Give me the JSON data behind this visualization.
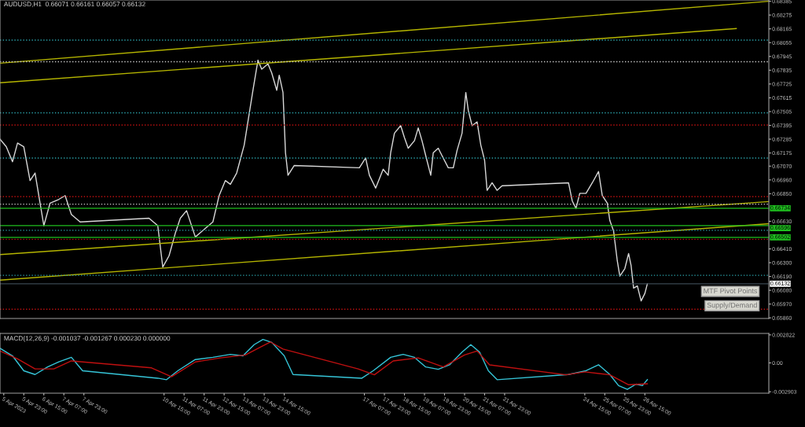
{
  "chart_data": [
    {
      "type": "line",
      "title": "AUDUSD,H1  0.66071 0.66161 0.66057 0.66132",
      "tick_labels": "y",
      "grid": false,
      "legend": false,
      "xlim": [
        "2023-04-05T04:00",
        "2023-04-30T18:00"
      ],
      "ylim": [
        0.65855,
        0.68395
      ],
      "yticks": [
        {
          "value": 0.68385,
          "label": "0.68385"
        },
        {
          "value": 0.68275,
          "label": "0.68275"
        },
        {
          "value": 0.68165,
          "label": "0.68165"
        },
        {
          "value": 0.68055,
          "label": "0.68055"
        },
        {
          "value": 0.67945,
          "label": "0.67945"
        },
        {
          "value": 0.67835,
          "label": "0.67835"
        },
        {
          "value": 0.67725,
          "label": "0.67725"
        },
        {
          "value": 0.67615,
          "label": "0.67615"
        },
        {
          "value": 0.67505,
          "label": "0.67505"
        },
        {
          "value": 0.67395,
          "label": "0.67395"
        },
        {
          "value": 0.67285,
          "label": "0.67285"
        },
        {
          "value": 0.67175,
          "label": "0.67175"
        },
        {
          "value": 0.6707,
          "label": "0.67070"
        },
        {
          "value": 0.6696,
          "label": "0.66960"
        },
        {
          "value": 0.6685,
          "label": "0.66850"
        },
        {
          "value": 0.6663,
          "label": "0.66630"
        },
        {
          "value": 0.6641,
          "label": "0.66410"
        },
        {
          "value": 0.663,
          "label": "0.66300"
        },
        {
          "value": 0.6619,
          "label": "0.66190"
        },
        {
          "value": 0.6608,
          "label": "0.66080"
        },
        {
          "value": 0.6597,
          "label": "0.65970"
        },
        {
          "value": 0.6586,
          "label": "0.65860"
        }
      ],
      "series": [
        {
          "type": "line",
          "color": "#d8d8d8",
          "x": [
            "2023-04-05T04:00",
            "2023-04-05T09:00",
            "2023-04-05T14:00",
            "2023-04-05T18:00",
            "2023-04-05T23:00",
            "2023-04-06T04:00",
            "2023-04-06T08:00",
            "2023-04-06T13:00",
            "2023-04-06T15:00",
            "2023-04-06T20:00",
            "2023-04-07T03:00",
            "2023-04-07T08:00",
            "2023-04-07T13:00",
            "2023-04-07T20:00",
            "2023-04-10T03:00",
            "2023-04-10T10:00",
            "2023-04-10T14:00",
            "2023-04-10T19:00",
            "2023-04-11T00:00",
            "2023-04-11T04:00",
            "2023-04-11T09:00",
            "2023-04-11T16:00",
            "2023-04-11T23:00",
            "2023-04-12T06:00",
            "2023-04-12T11:00",
            "2023-04-12T16:00",
            "2023-04-12T20:00",
            "2023-04-13T01:00",
            "2023-04-13T07:00",
            "2023-04-13T14:00",
            "2023-04-13T18:00",
            "2023-04-13T21:00",
            "2023-04-14T02:00",
            "2023-04-14T05:00",
            "2023-04-14T09:00",
            "2023-04-14T11:00",
            "2023-04-14T14:00",
            "2023-04-14T16:00",
            "2023-04-14T18:00",
            "2023-04-14T23:00",
            "2023-04-17T03:00",
            "2023-04-17T08:00",
            "2023-04-17T11:00",
            "2023-04-17T16:00",
            "2023-04-17T22:00",
            "2023-04-18T02:00",
            "2023-04-18T04:00",
            "2023-04-18T07:00",
            "2023-04-18T12:00",
            "2023-04-18T15:00",
            "2023-04-18T18:00",
            "2023-04-18T23:00",
            "2023-04-19T02:00",
            "2023-04-19T05:00",
            "2023-04-19T08:00",
            "2023-04-19T12:00",
            "2023-04-19T14:00",
            "2023-04-19T18:00",
            "2023-04-19T21:00",
            "2023-04-20T02:00",
            "2023-04-20T06:00",
            "2023-04-20T09:00",
            "2023-04-20T13:00",
            "2023-04-20T16:00",
            "2023-04-20T18:00",
            "2023-04-20T21:00",
            "2023-04-21T01:00",
            "2023-04-21T04:00",
            "2023-04-21T07:00",
            "2023-04-21T09:00",
            "2023-04-21T13:00",
            "2023-04-21T17:00",
            "2023-04-21T21:00",
            "2023-04-24T02:00",
            "2023-04-24T05:00",
            "2023-04-24T08:00",
            "2023-04-24T11:00",
            "2023-04-24T16:00",
            "2023-04-24T21:00",
            "2023-04-25T02:00",
            "2023-04-25T05:00",
            "2023-04-25T09:00",
            "2023-04-25T11:00",
            "2023-04-25T14:00",
            "2023-04-25T17:00",
            "2023-04-25T19:00",
            "2023-04-25T23:00",
            "2023-04-26T02:00",
            "2023-04-26T04:00",
            "2023-04-26T06:00",
            "2023-04-26T09:00",
            "2023-04-26T12:00",
            "2023-04-26T15:00",
            "2023-04-26T17:00"
          ],
          "values": [
            0.67285,
            0.67225,
            0.67105,
            0.67254,
            0.67225,
            0.66955,
            0.67015,
            0.66715,
            0.66595,
            0.66775,
            0.66805,
            0.66835,
            0.66685,
            0.66625,
            0.66655,
            0.66595,
            0.66265,
            0.66355,
            0.66535,
            0.66655,
            0.66715,
            0.66505,
            0.66565,
            0.66625,
            0.66835,
            0.66955,
            0.66925,
            0.67015,
            0.67237,
            0.67675,
            0.67915,
            0.67843,
            0.67885,
            0.67813,
            0.67675,
            0.67795,
            0.67657,
            0.67177,
            0.66997,
            0.67075,
            0.67057,
            0.67135,
            0.66997,
            0.66895,
            0.67045,
            0.66997,
            0.67177,
            0.67333,
            0.67393,
            0.67297,
            0.67213,
            0.67273,
            0.67375,
            0.67273,
            0.67153,
            0.66997,
            0.67177,
            0.67213,
            0.67153,
            0.67057,
            0.67057,
            0.67195,
            0.67333,
            0.67657,
            0.67513,
            0.67393,
            0.67423,
            0.67237,
            0.67117,
            0.66877,
            0.66937,
            0.66877,
            0.66913,
            0.66937,
            0.66793,
            0.66733,
            0.66853,
            0.66853,
            0.66937,
            0.67027,
            0.66835,
            0.66775,
            0.66637,
            0.66553,
            0.66313,
            0.66193,
            0.66253,
            0.66373,
            0.66277,
            0.66097,
            0.66115,
            0.65995,
            0.66055,
            0.66132
          ]
        },
        {
          "type": "line",
          "color": "#b5b500",
          "x": [
            "2023-04-05T04:00",
            "2023-04-30T18:00"
          ],
          "values": [
            0.67891,
            0.68385
          ]
        },
        {
          "type": "line",
          "color": "#b5b500",
          "x": [
            "2023-04-05T04:00",
            "2023-04-29T16:00"
          ],
          "values": [
            0.67735,
            0.68167
          ]
        },
        {
          "type": "line",
          "color": "#b5b500",
          "x": [
            "2023-04-05T04:00",
            "2023-04-30T18:00"
          ],
          "values": [
            0.66365,
            0.66787
          ]
        },
        {
          "type": "line",
          "color": "#b5b500",
          "x": [
            "2023-04-05T04:00",
            "2023-04-30T18:00"
          ],
          "values": [
            0.66161,
            0.66611
          ]
        }
      ],
      "ref_lines": [
        {
          "axis": "y",
          "value": 0.66734,
          "label": "0.66734",
          "color": "#1fbf1f",
          "line_style": "solid"
        },
        {
          "axis": "y",
          "value": 0.66596,
          "label": "0.66596",
          "color": "#1fbf1f",
          "line_style": "solid"
        },
        {
          "axis": "y",
          "value": 0.66502,
          "label": "0.66502",
          "color": "#1fbf1f",
          "line_style": "solid"
        },
        {
          "axis": "y",
          "value": 0.66132,
          "label": "0.66132",
          "color": "#3a4650",
          "line_style": "solid"
        },
        {
          "axis": "y",
          "value": 0.68075,
          "color": "#2aa0a8",
          "line_style": "dotted"
        },
        {
          "axis": "y",
          "value": 0.67903,
          "color": "#c8c8c8",
          "line_style": "dotted"
        },
        {
          "axis": "y",
          "value": 0.67495,
          "color": "#2aa0a8",
          "line_style": "dotted"
        },
        {
          "axis": "y",
          "value": 0.67398,
          "color": "#c01010",
          "line_style": "dotted"
        },
        {
          "axis": "y",
          "value": 0.67134,
          "color": "#2aa0a8",
          "line_style": "dotted"
        },
        {
          "axis": "y",
          "value": 0.66827,
          "color": "#c01010",
          "line_style": "dotted"
        },
        {
          "axis": "y",
          "value": 0.66767,
          "color": "#c8c8c8",
          "line_style": "dotted"
        },
        {
          "axis": "y",
          "value": 0.66558,
          "color": "#2aa0a8",
          "line_style": "dotted"
        },
        {
          "axis": "y",
          "value": 0.66486,
          "color": "#c01010",
          "line_style": "dotted"
        },
        {
          "axis": "y",
          "value": 0.66199,
          "color": "#2aa0a8",
          "line_style": "dotted"
        },
        {
          "axis": "y",
          "value": 0.65929,
          "color": "#c01010",
          "line_style": "dotted"
        }
      ],
      "annotations": [
        "MTF Pivot Points",
        "Supply/Demand"
      ]
    },
    {
      "type": "line",
      "title": "MACD(12,26,9) -0.001037 -0.001267 0.000230 0.000000",
      "grid": false,
      "legend": false,
      "xlim": [
        "2023-04-05T04:00",
        "2023-04-30T18:00"
      ],
      "xticks": [
        {
          "value": "2023-04-05T07:00",
          "label": "5 Apr 2023"
        },
        {
          "value": "2023-04-05T23:00",
          "label": "5 Apr 23:00"
        },
        {
          "value": "2023-04-06T15:00",
          "label": "6 Apr 15:00"
        },
        {
          "value": "2023-04-07T07:00",
          "label": "7 Apr 07:00"
        },
        {
          "value": "2023-04-07T23:00",
          "label": "7 Apr 23:00"
        },
        {
          "value": "2023-04-10T15:00",
          "label": "10 Apr 15:00"
        },
        {
          "value": "2023-04-11T07:00",
          "label": "11 Apr 07:00"
        },
        {
          "value": "2023-04-11T23:00",
          "label": "11 Apr 23:00"
        },
        {
          "value": "2023-04-12T15:00",
          "label": "12 Apr 15:00"
        },
        {
          "value": "2023-04-13T07:00",
          "label": "13 Apr 07:00"
        },
        {
          "value": "2023-04-13T23:00",
          "label": "13 Apr 23:00"
        },
        {
          "value": "2023-04-14T15:00",
          "label": "14 Apr 15:00"
        },
        {
          "value": "2023-04-17T07:00",
          "label": "17 Apr 07:00"
        },
        {
          "value": "2023-04-17T23:00",
          "label": "17 Apr 23:00"
        },
        {
          "value": "2023-04-18T15:00",
          "label": "18 Apr 15:00"
        },
        {
          "value": "2023-04-19T07:00",
          "label": "19 Apr 07:00"
        },
        {
          "value": "2023-04-19T23:00",
          "label": "19 Apr 23:00"
        },
        {
          "value": "2023-04-20T15:00",
          "label": "20 Apr 15:00"
        },
        {
          "value": "2023-04-21T07:00",
          "label": "21 Apr 07:00"
        },
        {
          "value": "2023-04-21T23:00",
          "label": "21 Apr 23:00"
        },
        {
          "value": "2023-04-24T15:00",
          "label": "24 Apr 15:00"
        },
        {
          "value": "2023-04-25T07:00",
          "label": "25 Apr 07:00"
        },
        {
          "value": "2023-04-25T23:00",
          "label": "25 Apr 23:00"
        },
        {
          "value": "2023-04-26T15:00",
          "label": "26 Apr 15:00"
        }
      ],
      "ylim": [
        -0.00305,
        0.00297
      ],
      "yticks": [
        {
          "value": 0.002822,
          "label": "0.002822"
        },
        {
          "value": 0,
          "label": "0.00"
        },
        {
          "value": -0.002903,
          "label": "-0.002903"
        }
      ],
      "series": [
        {
          "type": "line",
          "color": "#36c5d8",
          "x": [
            "2023-04-05T04:00",
            "2023-04-05T14:00",
            "2023-04-05T23:00",
            "2023-04-06T08:00",
            "2023-04-06T18:00",
            "2023-04-07T03:00",
            "2023-04-07T13:00",
            "2023-04-07T22:00",
            "2023-04-10T10:00",
            "2023-04-10T17:00",
            "2023-04-11T02:00",
            "2023-04-11T16:00",
            "2023-04-12T06:00",
            "2023-04-12T20:00",
            "2023-04-13T06:00",
            "2023-04-13T15:00",
            "2023-04-13T22:00",
            "2023-04-14T05:00",
            "2023-04-14T15:00",
            "2023-04-14T22:00",
            "2023-04-17T05:00",
            "2023-04-17T14:00",
            "2023-04-18T04:00",
            "2023-04-18T14:00",
            "2023-04-18T23:00",
            "2023-04-19T08:00",
            "2023-04-19T18:00",
            "2023-04-20T03:00",
            "2023-04-20T13:00",
            "2023-04-20T20:00",
            "2023-04-21T03:00",
            "2023-04-21T10:00",
            "2023-04-21T17:00",
            "2023-04-24T02:00",
            "2023-04-24T16:00",
            "2023-04-25T02:00",
            "2023-04-25T11:00",
            "2023-04-25T18:00",
            "2023-04-26T01:00",
            "2023-04-26T08:00",
            "2023-04-26T13:00",
            "2023-04-26T17:00"
          ],
          "values": [
            0.00147,
            0.00071,
            -0.00079,
            -0.00117,
            -0.00041,
            0.00011,
            0.00056,
            -0.00079,
            -0.00154,
            -0.00169,
            -0.00079,
            0.00034,
            0.00056,
            0.00086,
            0.00071,
            0.00184,
            0.00237,
            0.00207,
            0.00071,
            -0.00117,
            -0.00154,
            -0.00079,
            0.00056,
            0.00086,
            0.00056,
            -0.00041,
            -0.00064,
            -0.00019,
            0.00109,
            0.00184,
            0.00109,
            -0.00079,
            -0.00169,
            -0.00117,
            -0.00079,
            -0.00019,
            -0.00117,
            -0.00229,
            -0.00267,
            -0.00214,
            -0.00229,
            -0.00169
          ]
        },
        {
          "type": "line",
          "color": "#c01010",
          "x": [
            "2023-04-05T04:00",
            "2023-04-05T18:00",
            "2023-04-06T08:00",
            "2023-04-06T23:00",
            "2023-04-07T13:00",
            "2023-04-10T05:00",
            "2023-04-10T21:00",
            "2023-04-11T16:00",
            "2023-04-12T12:00",
            "2023-04-13T08:00",
            "2023-04-13T20:00",
            "2023-04-14T04:00",
            "2023-04-14T14:00",
            "2023-04-17T02:00",
            "2023-04-17T15:00",
            "2023-04-18T06:00",
            "2023-04-19T02:00",
            "2023-04-19T22:00",
            "2023-04-20T15:00",
            "2023-04-21T01:00",
            "2023-04-21T11:00",
            "2023-04-24T00:00",
            "2023-04-24T15:00",
            "2023-04-25T11:00",
            "2023-04-26T02:00",
            "2023-04-26T17:00"
          ],
          "values": [
            0.0012,
            0.0004,
            -0.0006,
            -0.0006,
            0.0002,
            -0.0005,
            -0.0014,
            0.0001,
            0.0005,
            0.0008,
            0.0016,
            0.0021,
            0.0014,
            -0.0006,
            -0.0012,
            0.0002,
            0.0005,
            -0.0004,
            0.0008,
            0.0012,
            -0.0002,
            -0.0012,
            -0.0009,
            -0.0012,
            -0.0022,
            -0.0021
          ]
        }
      ]
    }
  ]
}
